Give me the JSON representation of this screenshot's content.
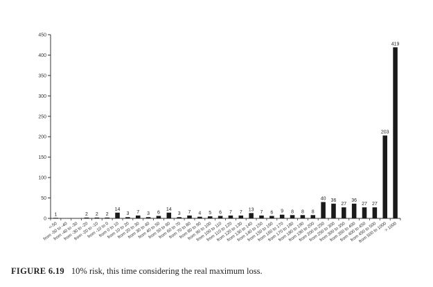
{
  "caption": {
    "figure_label": "FIGURE 6.19",
    "text": "10% risk, this time considering the real maximum loss."
  },
  "chart_data": {
    "type": "bar",
    "categories": [
      "<-50",
      "from -50 to -40",
      "from -40 to -30",
      "from -30 to -20",
      "from -20 to -10",
      "from -10 to 0",
      "from 0 to 10",
      "from 10 to 20",
      "from 20 to 30",
      "from 30 to 40",
      "from 40 to 50",
      "from 50 to 60",
      "from 60 to 70",
      "from 70 to 80",
      "from 80 to 90",
      "from 90 to 100",
      "from 100 to 110",
      "from 110 to 120",
      "from 120 to 130",
      "from 130 to 140",
      "from 140 to 150",
      "from 150 to 160",
      "from 160 to 170",
      "from 170 to 180",
      "from 180 to 190",
      "from 190 to 200",
      "from 200 to 250",
      "from 250 to 300",
      "from 300 to 350",
      "from 350 to 400",
      "from 400 to 450",
      "from 450 to 500",
      "from 500 to 1000",
      "> 1000"
    ],
    "values": [
      1,
      0,
      0,
      2,
      2,
      2,
      14,
      3,
      7,
      3,
      6,
      14,
      3,
      7,
      4,
      5,
      6,
      7,
      7,
      13,
      7,
      6,
      9,
      8,
      8,
      8,
      40,
      36,
      27,
      36,
      27,
      27,
      203,
      419
    ],
    "data_labels": [
      "1",
      "",
      "",
      "2",
      "2",
      "2",
      "14",
      "3",
      "7",
      "3",
      "6",
      "14",
      "3",
      "7",
      "4",
      "5",
      "6",
      "7",
      "7",
      "13",
      "7",
      "6",
      "9",
      "8",
      "8",
      "8",
      "40",
      "36",
      "27",
      "36",
      "27",
      "27",
      "203",
      "419"
    ],
    "yticks": [
      0,
      50,
      100,
      150,
      200,
      250,
      300,
      350,
      400,
      450
    ],
    "ylim": [
      0,
      450
    ],
    "bar_color": "#1a1a1a",
    "grid": false,
    "legend": "none"
  }
}
